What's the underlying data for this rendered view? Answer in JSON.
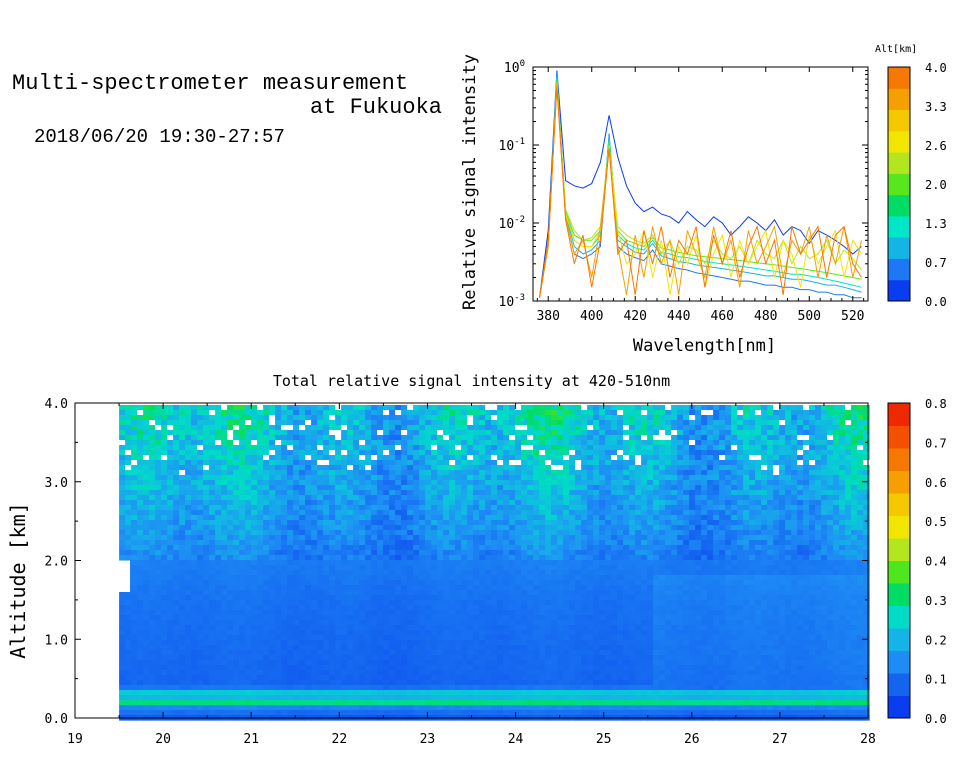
{
  "header": {
    "title_line1": "Multi-spectrometer measurement",
    "title_line2": "at Fukuoka",
    "date_range": "2018/06/20 19:30-27:57"
  },
  "chart_data": [
    {
      "type": "line",
      "title": "",
      "xlabel": "Wavelength[nm]",
      "ylabel": "Relative signal intensity",
      "xlim": [
        373,
        527
      ],
      "ylim": [
        0.001,
        1
      ],
      "yscale": "log",
      "x_ticks": [
        "380",
        "400",
        "420",
        "440",
        "460",
        "480",
        "500",
        "520"
      ],
      "y_ticks": [
        "10^-3",
        "10^-2",
        "10^-1",
        "10^0"
      ],
      "colorbar": {
        "label": "Alt[km]",
        "ticks": [
          "0.0",
          "0.7",
          "1.3",
          "2.0",
          "2.6",
          "3.3",
          "4.0"
        ],
        "colors": [
          "#0a3cf0",
          "#1e78f5",
          "#14b4e6",
          "#00e6c8",
          "#00dc64",
          "#5ae61e",
          "#b4e61e",
          "#f0e600",
          "#f5c800",
          "#f5a000",
          "#f57800"
        ]
      },
      "x": [
        376,
        380,
        384,
        388,
        392,
        396,
        400,
        404,
        408,
        412,
        416,
        420,
        424,
        428,
        432,
        436,
        440,
        444,
        448,
        452,
        456,
        460,
        464,
        468,
        472,
        476,
        480,
        484,
        488,
        492,
        496,
        500,
        504,
        508,
        512,
        516,
        520,
        524
      ],
      "series": [
        {
          "alt": 0.0,
          "color": "#0a3cf0",
          "values": [
            0.0011,
            0.008,
            0.9,
            0.035,
            0.03,
            0.028,
            0.032,
            0.06,
            0.24,
            0.07,
            0.03,
            0.018,
            0.014,
            0.016,
            0.013,
            0.012,
            0.01,
            0.014,
            0.011,
            0.009,
            0.012,
            0.01,
            0.007,
            0.009,
            0.012,
            0.01,
            0.008,
            0.011,
            0.007,
            0.009,
            0.008,
            0.0055,
            0.008,
            0.007,
            0.006,
            0.005,
            0.004,
            0.005
          ]
        },
        {
          "alt": 0.4,
          "color": "#1e78f5",
          "values": [
            0.0011,
            0.006,
            0.85,
            0.012,
            0.004,
            0.0035,
            0.004,
            0.005,
            0.14,
            0.005,
            0.004,
            0.0036,
            0.0033,
            0.0045,
            0.003,
            0.0028,
            0.0026,
            0.0025,
            0.0023,
            0.0022,
            0.0021,
            0.002,
            0.0019,
            0.0018,
            0.0018,
            0.0017,
            0.0016,
            0.0016,
            0.0015,
            0.0015,
            0.0014,
            0.0014,
            0.0013,
            0.0013,
            0.0012,
            0.0012,
            0.0011,
            0.0011
          ]
        },
        {
          "alt": 0.9,
          "color": "#14b4e6",
          "values": [
            0.0011,
            0.005,
            0.8,
            0.013,
            0.005,
            0.004,
            0.0045,
            0.006,
            0.13,
            0.006,
            0.005,
            0.0042,
            0.004,
            0.0055,
            0.0038,
            0.0035,
            0.0032,
            0.0031,
            0.0029,
            0.0028,
            0.0027,
            0.0026,
            0.0025,
            0.0024,
            0.0023,
            0.0022,
            0.0021,
            0.0021,
            0.002,
            0.0019,
            0.0019,
            0.0018,
            0.0017,
            0.0016,
            0.0016,
            0.0015,
            0.0014,
            0.0013
          ]
        },
        {
          "alt": 1.4,
          "color": "#00e6c8",
          "values": [
            0.0011,
            0.005,
            0.75,
            0.014,
            0.006,
            0.005,
            0.005,
            0.007,
            0.12,
            0.007,
            0.0055,
            0.0048,
            0.0045,
            0.006,
            0.0042,
            0.004,
            0.0037,
            0.0036,
            0.0034,
            0.0032,
            0.0031,
            0.003,
            0.0029,
            0.0028,
            0.0027,
            0.0026,
            0.0025,
            0.0024,
            0.0023,
            0.0022,
            0.0022,
            0.0021,
            0.002,
            0.0019,
            0.0018,
            0.0017,
            0.0016,
            0.0015
          ]
        },
        {
          "alt": 2.0,
          "color": "#5ae61e",
          "values": [
            0.0011,
            0.005,
            0.7,
            0.014,
            0.007,
            0.006,
            0.006,
            0.008,
            0.11,
            0.008,
            0.006,
            0.0055,
            0.005,
            0.0065,
            0.0048,
            0.0045,
            0.0042,
            0.004,
            0.0038,
            0.0037,
            0.0036,
            0.0035,
            0.0034,
            0.0033,
            0.0032,
            0.0031,
            0.003,
            0.0029,
            0.0028,
            0.0027,
            0.0026,
            0.0025,
            0.0024,
            0.0023,
            0.0022,
            0.0021,
            0.002,
            0.0019
          ]
        },
        {
          "alt": 2.6,
          "color": "#b4e61e",
          "values": [
            0.0011,
            0.005,
            0.65,
            0.015,
            0.008,
            0.006,
            0.0065,
            0.009,
            0.1,
            0.009,
            0.007,
            0.006,
            0.0055,
            0.007,
            0.004,
            0.006,
            0.003,
            0.005,
            0.0045,
            0.003,
            0.006,
            0.004,
            0.0035,
            0.005,
            0.003,
            0.006,
            0.004,
            0.0035,
            0.006,
            0.003,
            0.005,
            0.0035,
            0.004,
            0.006,
            0.003,
            0.0045,
            0.0035,
            0.0025
          ]
        },
        {
          "alt": 3.1,
          "color": "#f0e600",
          "values": [
            0.0011,
            0.005,
            0.6,
            0.013,
            0.006,
            0.005,
            0.005,
            0.008,
            0.09,
            0.008,
            0.003,
            0.004,
            0.008,
            0.002,
            0.006,
            0.0012,
            0.005,
            0.003,
            0.007,
            0.0015,
            0.004,
            0.007,
            0.002,
            0.006,
            0.003,
            0.005,
            0.008,
            0.002,
            0.006,
            0.004,
            0.0015,
            0.007,
            0.003,
            0.005,
            0.008,
            0.002,
            0.006,
            0.004
          ]
        },
        {
          "alt": 3.6,
          "color": "#f5a000",
          "values": [
            0.0011,
            0.005,
            0.6,
            0.012,
            0.004,
            0.006,
            0.002,
            0.009,
            0.09,
            0.005,
            0.0012,
            0.007,
            0.002,
            0.009,
            0.003,
            0.006,
            0.0012,
            0.008,
            0.004,
            0.002,
            0.009,
            0.003,
            0.006,
            0.0015,
            0.008,
            0.003,
            0.005,
            0.009,
            0.002,
            0.006,
            0.004,
            0.009,
            0.002,
            0.007,
            0.003,
            0.009,
            0.002,
            0.006
          ]
        },
        {
          "alt": 4.0,
          "color": "#f57800",
          "values": [
            0.0011,
            0.006,
            0.55,
            0.011,
            0.003,
            0.007,
            0.0015,
            0.006,
            0.09,
            0.004,
            0.006,
            0.0012,
            0.008,
            0.003,
            0.009,
            0.002,
            0.006,
            0.004,
            0.009,
            0.0015,
            0.007,
            0.003,
            0.008,
            0.002,
            0.005,
            0.009,
            0.003,
            0.006,
            0.0012,
            0.009,
            0.004,
            0.006,
            0.009,
            0.002,
            0.007,
            0.009,
            0.003,
            0.002
          ]
        }
      ]
    },
    {
      "type": "heatmap",
      "title": "Total relative signal intensity at 420-510nm",
      "xlabel": "",
      "ylabel": "Altitude [km]",
      "xlim": [
        19,
        28
      ],
      "ylim": [
        0.0,
        4.0
      ],
      "x_ticks": [
        "19",
        "20",
        "21",
        "22",
        "23",
        "24",
        "25",
        "26",
        "27",
        "28"
      ],
      "y_ticks": [
        "0.0",
        "1.0",
        "2.0",
        "3.0",
        "4.0"
      ],
      "data_x_range": [
        19.5,
        27.95
      ],
      "low_altitude_band_km": [
        0.15,
        0.32
      ],
      "colorbar": {
        "ticks": [
          "0.0",
          "0.1",
          "0.2",
          "0.3",
          "0.4",
          "0.5",
          "0.6",
          "0.7",
          "0.8"
        ],
        "range": [
          0.0,
          0.8
        ],
        "colors": [
          "#0a3cf0",
          "#1464f0",
          "#1e8cf5",
          "#14b4e6",
          "#00dcc8",
          "#00dc64",
          "#50e61e",
          "#b4e61e",
          "#f0e600",
          "#f5c800",
          "#f5a000",
          "#f57800",
          "#f55000",
          "#f02800"
        ]
      },
      "profile_by_altitude": [
        {
          "alt": 0.0,
          "value": 0.04
        },
        {
          "alt": 0.15,
          "value": 0.12
        },
        {
          "alt": 0.2,
          "value": 0.3
        },
        {
          "alt": 0.25,
          "value": 0.18
        },
        {
          "alt": 0.32,
          "value": 0.22
        },
        {
          "alt": 0.4,
          "value": 0.06
        },
        {
          "alt": 1.0,
          "value": 0.07
        },
        {
          "alt": 1.5,
          "value": 0.08
        },
        {
          "alt": 2.0,
          "value": 0.1
        },
        {
          "alt": 2.5,
          "value": 0.14
        },
        {
          "alt": 3.0,
          "value": 0.17
        },
        {
          "alt": 3.5,
          "value": 0.2
        },
        {
          "alt": 4.0,
          "value": 0.22
        }
      ]
    }
  ]
}
